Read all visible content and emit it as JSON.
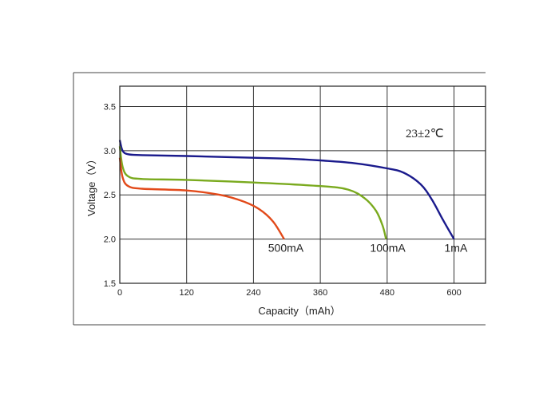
{
  "chart_data": {
    "type": "line",
    "xlabel": "Capacity（mAh）",
    "ylabel": "Voltage（V）",
    "xlim": [
      0,
      600
    ],
    "ylim": [
      1.5,
      3.5
    ],
    "x_ticks": [
      "0",
      "120",
      "240",
      "360",
      "480",
      "600"
    ],
    "y_ticks": [
      "1.5",
      "2.0",
      "2.5",
      "3.0",
      "3.5"
    ],
    "grid": true,
    "annotation": "23±2℃",
    "series": [
      {
        "name": "1mA",
        "color": "#1a1a8c",
        "points": [
          [
            0,
            3.12
          ],
          [
            5,
            3.0
          ],
          [
            15,
            2.96
          ],
          [
            40,
            2.95
          ],
          [
            120,
            2.94
          ],
          [
            240,
            2.92
          ],
          [
            300,
            2.91
          ],
          [
            360,
            2.89
          ],
          [
            420,
            2.86
          ],
          [
            480,
            2.8
          ],
          [
            510,
            2.75
          ],
          [
            540,
            2.62
          ],
          [
            560,
            2.45
          ],
          [
            580,
            2.22
          ],
          [
            600,
            2.0
          ]
        ]
      },
      {
        "name": "100mA",
        "color": "#7aaa1e",
        "points": [
          [
            0,
            3.05
          ],
          [
            5,
            2.82
          ],
          [
            15,
            2.71
          ],
          [
            40,
            2.68
          ],
          [
            120,
            2.67
          ],
          [
            240,
            2.64
          ],
          [
            360,
            2.6
          ],
          [
            410,
            2.56
          ],
          [
            440,
            2.46
          ],
          [
            460,
            2.32
          ],
          [
            472,
            2.15
          ],
          [
            478,
            2.0
          ]
        ]
      },
      {
        "name": "500mA",
        "color": "#e24a1a",
        "points": [
          [
            0,
            2.92
          ],
          [
            5,
            2.7
          ],
          [
            15,
            2.6
          ],
          [
            40,
            2.57
          ],
          [
            120,
            2.55
          ],
          [
            180,
            2.5
          ],
          [
            220,
            2.43
          ],
          [
            250,
            2.34
          ],
          [
            275,
            2.2
          ],
          [
            295,
            2.0
          ]
        ]
      }
    ]
  }
}
